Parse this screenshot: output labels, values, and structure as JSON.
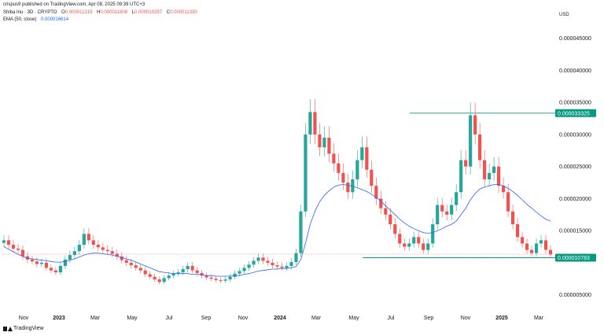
{
  "header": {
    "published": "crispus9 published on TradingView.com, Apr 08, 2025 09:39 UTC+3"
  },
  "legend": {
    "symbol": "Shiba Inu · 3D · CRYPTO",
    "ohlc": [
      {
        "k": "O",
        "v": "0.000011319"
      },
      {
        "k": "H",
        "v": "0.000011808"
      },
      {
        "k": "L",
        "v": "0.000010297"
      },
      {
        "k": "C",
        "v": "0.000011330"
      }
    ],
    "ema_label": "EMA (50, close)",
    "ema_value": "0.000016614"
  },
  "currency": "USD",
  "footer": {
    "brand": "TradingView"
  },
  "colors": {
    "up": "#26a69a",
    "down": "#ef5350",
    "ema": "#2962ff",
    "level": "#089981",
    "ohlc_down": "#ef5350",
    "ema_text": "#2962ff"
  },
  "chart_data": {
    "type": "line",
    "series": [
      {
        "values": [
          1.35e-05,
          1.28e-05,
          1.22e-05,
          1.2e-05,
          1.1e-05,
          1.05e-05,
          1.02e-05,
          9.8e-06,
          1e-05,
          9.2e-06,
          8.8e-06,
          8.5e-06,
          9.5e-06,
          1.05e-05,
          1.12e-05,
          1.18e-05,
          1.28e-05,
          1.45e-05,
          1.35e-05,
          1.28e-05,
          1.24e-05,
          1.2e-05,
          1.18e-05,
          1.14e-05,
          1.1e-05,
          1.04e-05,
          1e-05,
          9.6e-06,
          9.2e-06,
          8.8e-06,
          8.2e-06,
          7.8e-06,
          7.4e-06,
          7e-06,
          7.6e-06,
          8e-06,
          8.3e-06,
          8.5e-06,
          9e-06,
          9.5e-06,
          8.8e-06,
          8.4e-06,
          8e-06,
          7.7e-06,
          7.5e-06,
          7.3e-06,
          7.2e-06,
          7.4e-06,
          7.8e-06,
          8.3e-06,
          8.7e-06,
          9.2e-06,
          9.7e-06,
          1.03e-05,
          1.08e-05,
          1.03e-05,
          1e-05,
          9.6e-06,
          9.4e-06,
          9.2e-06,
          9.5e-06,
          1.01e-05,
          1.15e-05,
          1.8e-05,
          3e-05,
          3.35e-05,
          3e-05,
          2.8e-05,
          2.95e-05,
          2.7e-05,
          2.55e-05,
          2.4e-05,
          2.25e-05,
          2.1e-05,
          2.3e-05,
          2.6e-05,
          2.8e-05,
          2.45e-05,
          2.2e-05,
          2e-05,
          1.85e-05,
          1.75e-05,
          1.6e-05,
          1.45e-05,
          1.3e-05,
          1.25e-05,
          1.3e-05,
          1.4e-05,
          1.3e-05,
          1.2e-05,
          1.3e-05,
          1.6e-05,
          1.9e-05,
          1.8e-05,
          1.75e-05,
          1.9e-05,
          2.1e-05,
          2.6e-05,
          2.5e-05,
          3.3e-05,
          3e-05,
          2.6e-05,
          2.3e-05,
          2.4e-05,
          2.5e-05,
          2.2e-05,
          2.1e-05,
          1.8e-05,
          1.6e-05,
          1.4e-05,
          1.3e-05,
          1.2e-05,
          1.15e-05,
          1.3e-05,
          1.35e-05,
          1.2e-05,
          1.13e-05
        ]
      },
      {
        "values": [
          1.25e-05,
          1.21e-05,
          1.17e-05,
          1.13e-05,
          1.1e-05,
          1.07e-05,
          1.06e-05,
          1.05e-05,
          1.04e-05,
          1.03e-05,
          1.02e-05,
          1.01e-05,
          1.01e-05,
          1.02e-05,
          1.04e-05,
          1.06e-05,
          1.09e-05,
          1.12e-05,
          1.14e-05,
          1.15e-05,
          1.15e-05,
          1.14e-05,
          1.13e-05,
          1.12e-05,
          1.1e-05,
          1.08e-05,
          1.06e-05,
          1.04e-05,
          1.01e-05,
          9.8e-06,
          9.5e-06,
          9.2e-06,
          8.9e-06,
          8.6e-06,
          8.5e-06,
          8.4e-06,
          8.3e-06,
          8.3e-06,
          8.3e-06,
          8.3e-06,
          8.2e-06,
          8.2e-06,
          8.1e-06,
          8e-06,
          8e-06,
          7.9e-06,
          7.9e-06,
          7.9e-06,
          7.9e-06,
          8e-06,
          8e-06,
          8.2e-06,
          8.3e-06,
          8.5e-06,
          8.7e-06,
          8.8e-06,
          8.9e-06,
          9e-06,
          9e-06,
          9.1e-06,
          9.1e-06,
          9.2e-06,
          9.4e-06,
          1.05e-05,
          1.3e-05,
          1.6e-05,
          1.8e-05,
          1.95e-05,
          2.05e-05,
          2.12e-05,
          2.18e-05,
          2.21e-05,
          2.22e-05,
          2.21e-05,
          2.19e-05,
          2.17e-05,
          2.14e-05,
          2.11e-05,
          2.07e-05,
          2.02e-05,
          1.96e-05,
          1.89e-05,
          1.82e-05,
          1.75e-05,
          1.68e-05,
          1.62e-05,
          1.57e-05,
          1.53e-05,
          1.5e-05,
          1.47e-05,
          1.46e-05,
          1.47e-05,
          1.5e-05,
          1.53e-05,
          1.57e-05,
          1.6e-05,
          1.65e-05,
          1.75e-05,
          1.85e-05,
          1.98e-05,
          2.08e-05,
          2.15e-05,
          2.18e-05,
          2.2e-05,
          2.22e-05,
          2.22e-05,
          2.2e-05,
          2.16e-05,
          2.11e-05,
          2.05e-05,
          1.98e-05,
          1.91e-05,
          1.85e-05,
          1.79e-05,
          1.73e-05,
          1.68e-05,
          1.65e-05
        ]
      }
    ],
    "x_ticks": [
      "Nov",
      "2023",
      "Mar",
      "May",
      "Jul",
      "Sep",
      "Nov",
      "2024",
      "Mar",
      "May",
      "Jul",
      "Sep",
      "Nov",
      "2025",
      "Mar"
    ],
    "y_ticks": [
      "0.000005000",
      "0.000010000",
      "0.000015000",
      "0.000020000",
      "0.000025000",
      "0.000030000",
      "0.000035000",
      "0.000040000",
      "0.000045000"
    ],
    "y_tick_values": [
      5e-06,
      1e-05,
      1.5e-05,
      2e-05,
      2.5e-05,
      3e-05,
      3.5e-05,
      4e-05,
      4.5e-05
    ],
    "ylim": [
      2.5e-06,
      4.95e-05
    ],
    "levels": [
      {
        "value": 3.3325e-05,
        "label": "0.000033325"
      },
      {
        "value": 1.0783e-05,
        "label": "0.000010783"
      }
    ],
    "current_price": 1.133e-05,
    "grid": false,
    "legend_position": "top-left"
  }
}
